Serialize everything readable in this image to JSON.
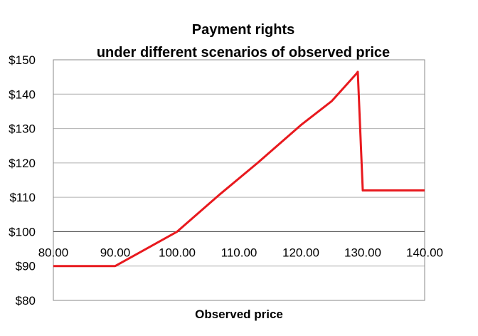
{
  "chart_data": {
    "type": "line",
    "title": "Payment rights",
    "subtitle": "under different scenarios of observed price",
    "xlabel": "Observed price",
    "ylabel": "",
    "xlim": [
      80,
      140
    ],
    "ylim": [
      80,
      150
    ],
    "x_ticks": [
      "80.00",
      "90.00",
      "100.00",
      "110.00",
      "120.00",
      "130.00",
      "140.00"
    ],
    "y_ticks": [
      "$80",
      "$90",
      "$100",
      "$110",
      "$120",
      "$130",
      "$140",
      "$150"
    ],
    "x_axis_crosses_at": 100,
    "grid": true,
    "legend": "none",
    "line_color": "#e8191e",
    "series": [
      {
        "name": "",
        "x": [
          80,
          90,
          94,
          100,
          107,
          113,
          120,
          125,
          129,
          129.2,
          130,
          135,
          140
        ],
        "y": [
          90,
          90,
          94,
          100,
          111,
          120,
          131,
          138,
          146,
          146.5,
          112,
          112,
          112
        ]
      }
    ]
  }
}
